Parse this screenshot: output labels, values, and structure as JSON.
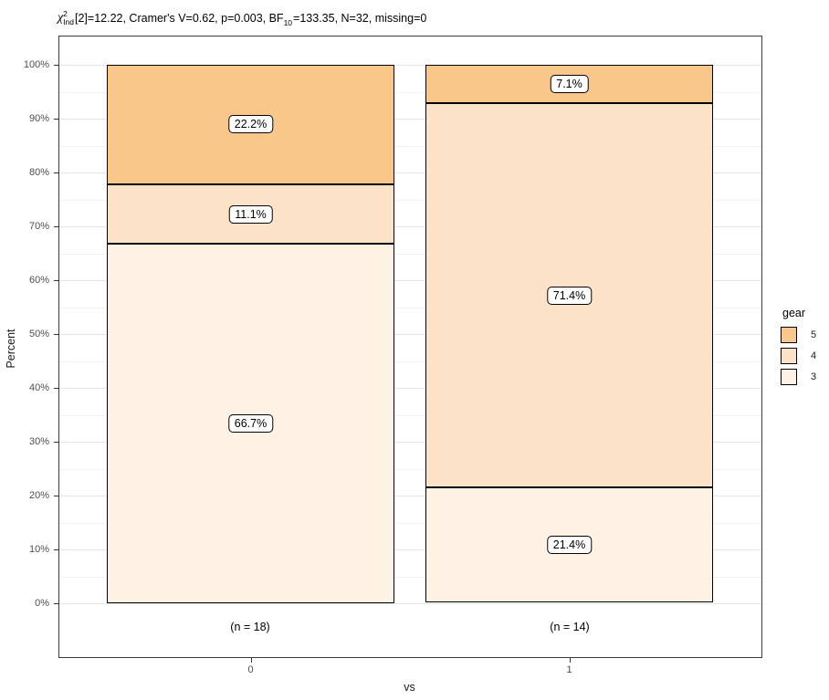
{
  "title": {
    "chi": "χ",
    "sup": "2",
    "sub": "Ind",
    "rest1": "[2]=12.22, Cramer's V=0.62, p=0.003, BF",
    "sub2": "10",
    "rest2": "=133.35, N=32, missing=0"
  },
  "chart_data": {
    "type": "bar",
    "stacked": true,
    "orientation": "vertical",
    "title": "χ²Ind[2]=12.22, Cramer's V=0.62, p=0.003, BF10=133.35, N=32, missing=0",
    "xlabel": "vs",
    "ylabel": "Percent",
    "categories": [
      "0",
      "1"
    ],
    "category_counts": [
      "(n = 18)",
      "(n = 14)"
    ],
    "legend_title": "gear",
    "legend_position": "right",
    "series": [
      {
        "name": "5",
        "color": "#FAC78A",
        "values": [
          22.2,
          7.1
        ],
        "labels": [
          "22.2%",
          "7.1%"
        ]
      },
      {
        "name": "4",
        "color": "#FCE3C8",
        "values": [
          11.1,
          71.4
        ],
        "labels": [
          "11.1%",
          "71.4%"
        ]
      },
      {
        "name": "3",
        "color": "#FEF2E4",
        "values": [
          66.7,
          21.4
        ],
        "labels": [
          "66.7%",
          "21.4%"
        ]
      }
    ],
    "ylim": [
      0,
      100
    ],
    "y_ticks": [
      "0%",
      "10%",
      "20%",
      "30%",
      "40%",
      "50%",
      "60%",
      "70%",
      "80%",
      "90%",
      "100%"
    ],
    "grid": true
  }
}
